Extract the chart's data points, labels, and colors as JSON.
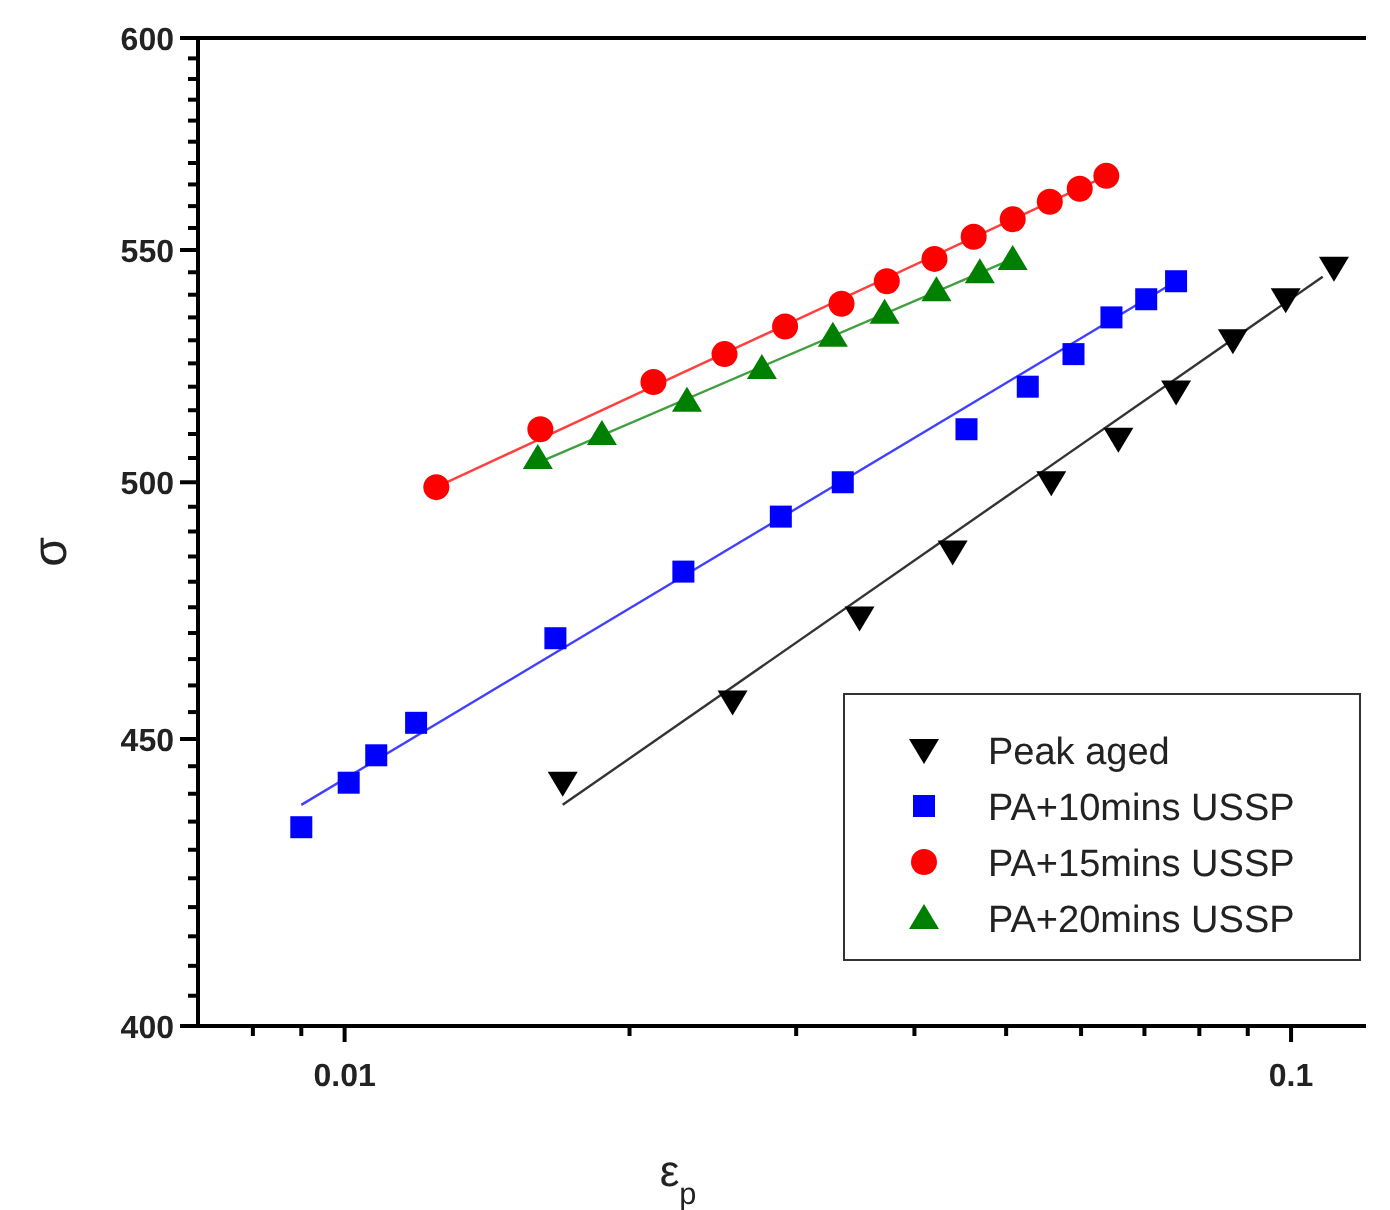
{
  "chart_data": {
    "type": "scatter",
    "xlabel": "ε$_{p}$",
    "ylabel": "σ",
    "log": "xy",
    "xlim": [
      0.007,
      0.12
    ],
    "ylim": [
      400,
      600
    ],
    "xticks": [
      {
        "value": 0.008,
        "label": null
      },
      {
        "value": 0.009,
        "label": null
      },
      0.01,
      {
        "value": 0.02,
        "label": null
      },
      {
        "value": 0.03,
        "label": null
      },
      {
        "value": 0.04,
        "label": null
      },
      {
        "value": 0.05,
        "label": null
      },
      {
        "value": 0.06,
        "label": null
      },
      {
        "value": 0.07,
        "label": null
      },
      {
        "value": 0.08,
        "label": null
      },
      {
        "value": 0.09,
        "label": null
      },
      0.1
    ],
    "yticks": [
      400,
      {
        "value": 405,
        "label": null
      },
      {
        "value": 410,
        "label": null
      },
      {
        "value": 415,
        "label": null
      },
      {
        "value": 420,
        "label": null
      },
      {
        "value": 425,
        "label": null
      },
      {
        "value": 430,
        "label": null
      },
      {
        "value": 435,
        "label": null
      },
      {
        "value": 440,
        "label": null
      },
      {
        "value": 445,
        "label": null
      },
      450,
      {
        "value": 455,
        "label": null
      },
      {
        "value": 460,
        "label": null
      },
      {
        "value": 465,
        "label": null
      },
      {
        "value": 470,
        "label": null
      },
      {
        "value": 475,
        "label": null
      },
      {
        "value": 480,
        "label": null
      },
      {
        "value": 485,
        "label": null
      },
      {
        "value": 490,
        "label": null
      },
      {
        "value": 495,
        "label": null
      },
      500,
      {
        "value": 505,
        "label": null
      },
      {
        "value": 510,
        "label": null
      },
      {
        "value": 515,
        "label": null
      },
      {
        "value": 520,
        "label": null
      },
      {
        "value": 525,
        "label": null
      },
      {
        "value": 530,
        "label": null
      },
      {
        "value": 535,
        "label": null
      },
      {
        "value": 540,
        "label": null
      },
      {
        "value": 545,
        "label": null
      },
      550,
      {
        "value": 555,
        "label": null
      },
      {
        "value": 560,
        "label": null
      },
      {
        "value": 565,
        "label": null
      },
      {
        "value": 570,
        "label": null
      },
      {
        "value": 575,
        "label": null
      },
      {
        "value": 580,
        "label": null
      },
      {
        "value": 585,
        "label": null
      },
      {
        "value": 590,
        "label": null
      },
      {
        "value": 595,
        "label": null
      },
      600
    ],
    "grid": false,
    "legend": "bottom right",
    "series": [
      {
        "name": "Peak aged",
        "color": "#000000",
        "marker": "triangle-down",
        "x": [
          0.017,
          0.0257,
          0.035,
          0.0439,
          0.0558,
          0.0657,
          0.0756,
          0.0868,
          0.0987,
          0.111
        ],
        "values": [
          442,
          457,
          473,
          486,
          500,
          509,
          519,
          530,
          539,
          546
        ]
      },
      {
        "name": "PA+10mins USSP",
        "color": "#0000ff",
        "marker": "square",
        "x": [
          0.009,
          0.0101,
          0.0108,
          0.0119,
          0.0167,
          0.0228,
          0.0289,
          0.0336,
          0.0454,
          0.0527,
          0.0589,
          0.0646,
          0.0703,
          0.0756
        ],
        "values": [
          434,
          442,
          447,
          453,
          469,
          482,
          493,
          500,
          511,
          520,
          527,
          535,
          539,
          543
        ]
      },
      {
        "name": "PA+15mins USSP",
        "color": "#ff0000",
        "marker": "circle",
        "x": [
          0.0125,
          0.0161,
          0.0212,
          0.0252,
          0.0292,
          0.0335,
          0.0374,
          0.042,
          0.0462,
          0.0508,
          0.0556,
          0.0598,
          0.0638
        ],
        "values": [
          499,
          511,
          521,
          527,
          533,
          538,
          543,
          548,
          553,
          557,
          561,
          564,
          567
        ]
      },
      {
        "name": "PA+20mins USSP",
        "color": "#008000",
        "marker": "triangle",
        "x": [
          0.016,
          0.0187,
          0.023,
          0.0276,
          0.0328,
          0.0372,
          0.0422,
          0.0469,
          0.0508
        ],
        "values": [
          505,
          510,
          517,
          524,
          531,
          536,
          541,
          545,
          548
        ]
      },
      {
        "type": "line",
        "color": "#333333",
        "marker": "none",
        "line_style": "solid",
        "x": [
          0.017,
          0.108
        ],
        "values": [
          438,
          544
        ]
      },
      {
        "type": "line",
        "color": "#4040ff",
        "marker": "none",
        "line_style": "solid",
        "x": [
          0.009,
          0.0756
        ],
        "values": [
          438,
          543
        ]
      },
      {
        "type": "line",
        "color": "#ff4040",
        "marker": "none",
        "line_style": "solid",
        "x": [
          0.0125,
          0.0638
        ],
        "values": [
          499,
          567
        ]
      },
      {
        "type": "line",
        "color": "#40a040",
        "marker": "none",
        "line_style": "solid",
        "x": [
          0.016,
          0.0508
        ],
        "values": [
          504,
          548
        ]
      }
    ]
  }
}
